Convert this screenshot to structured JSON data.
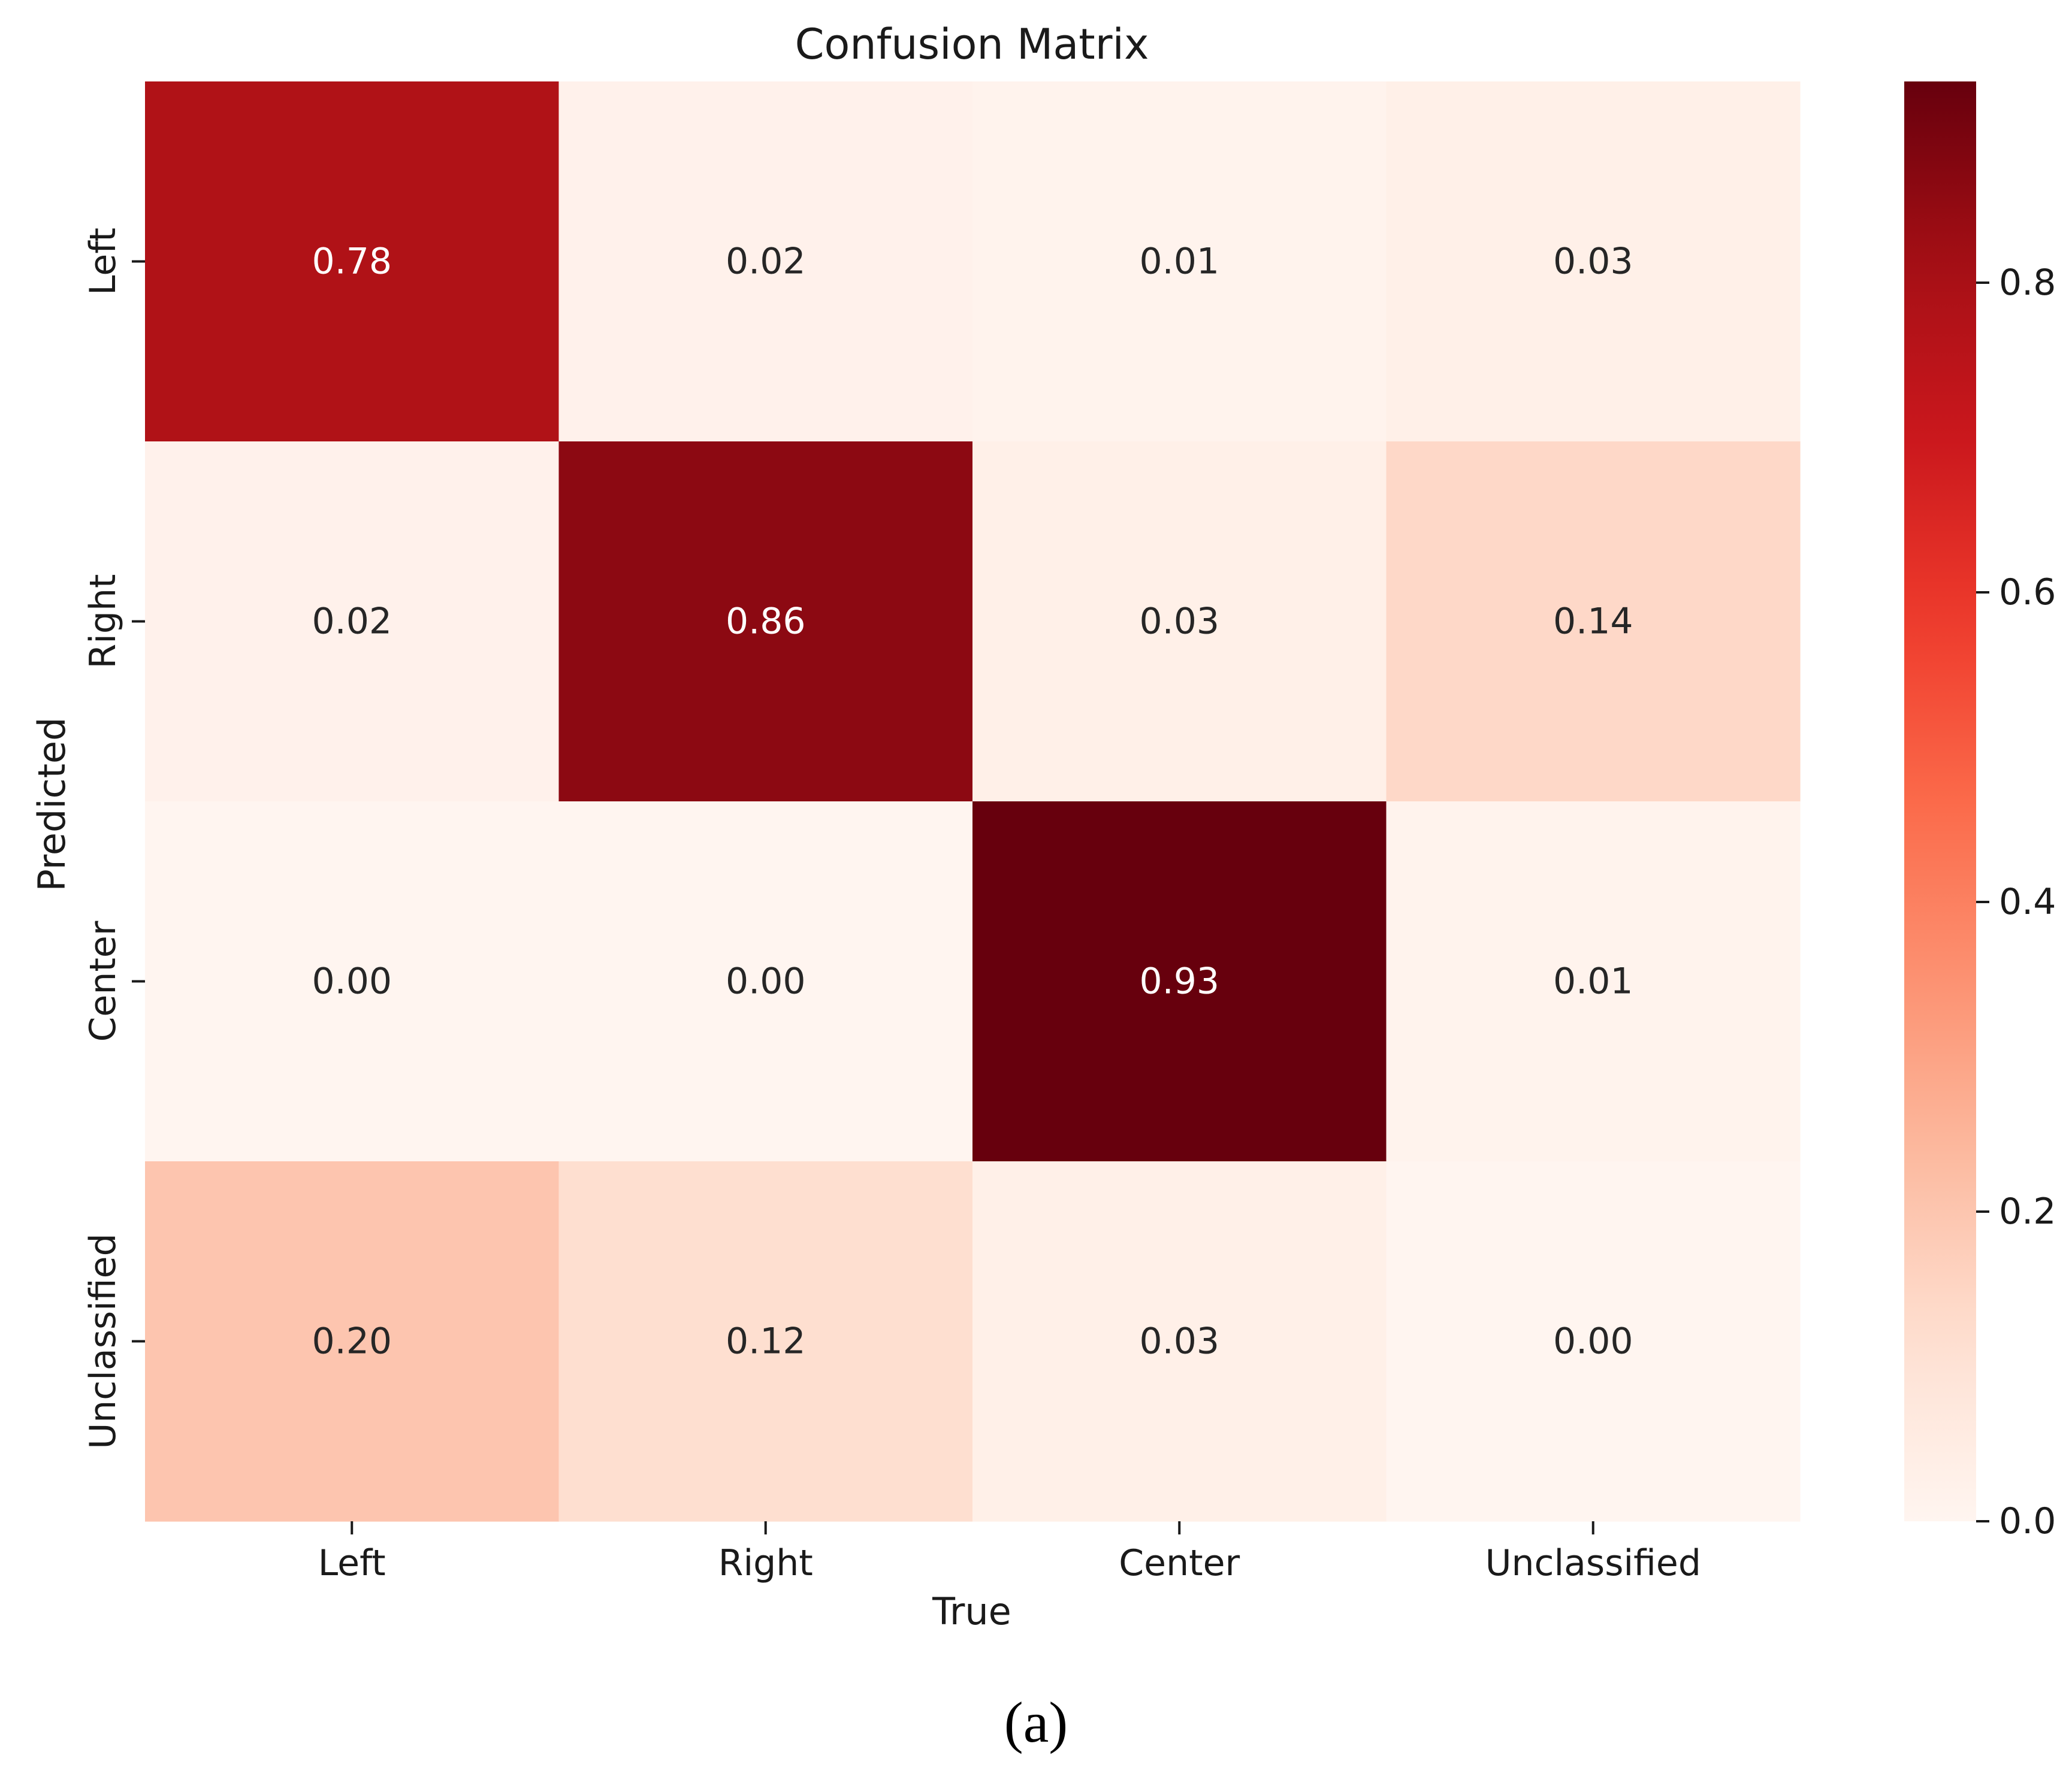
{
  "chart_data": {
    "type": "heatmap",
    "title": "Confusion Matrix",
    "xlabel": "True",
    "ylabel": "Predicted",
    "x_categories": [
      "Left",
      "Right",
      "Center",
      "Unclassified"
    ],
    "y_categories": [
      "Left",
      "Right",
      "Center",
      "Unclassified"
    ],
    "values": [
      [
        0.78,
        0.02,
        0.01,
        0.03
      ],
      [
        0.02,
        0.86,
        0.03,
        0.14
      ],
      [
        0.0,
        0.0,
        0.93,
        0.01
      ],
      [
        0.2,
        0.12,
        0.03,
        0.0
      ]
    ],
    "value_labels": [
      [
        "0.78",
        "0.02",
        "0.01",
        "0.03"
      ],
      [
        "0.02",
        "0.86",
        "0.03",
        "0.14"
      ],
      [
        "0.00",
        "0.00",
        "0.93",
        "0.01"
      ],
      [
        "0.20",
        "0.12",
        "0.03",
        "0.00"
      ]
    ],
    "colorbar": {
      "colormap": "Reds",
      "range": [
        0.0,
        0.93
      ],
      "ticks": [
        0.0,
        0.2,
        0.4,
        0.6,
        0.8
      ],
      "tick_labels": [
        "0.0",
        "0.2",
        "0.4",
        "0.6",
        "0.8"
      ]
    }
  },
  "caption": "(a)"
}
